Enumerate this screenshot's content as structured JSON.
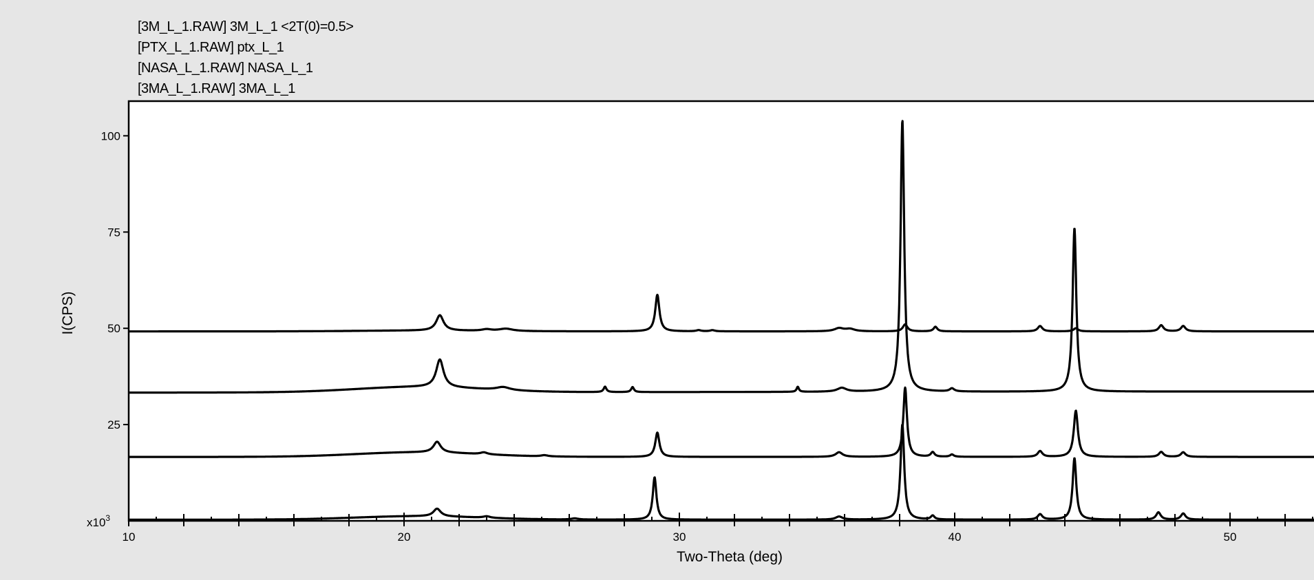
{
  "legend": {
    "items": [
      "[3M_L_1.RAW] 3M_L_1 <2T(0)=0.5>",
      "[PTX_L_1.RAW] ptx_L_1",
      "[NASA_L_1.RAW] NASA_L_1",
      "[3MA_L_1.RAW] 3MA_L_1"
    ]
  },
  "chart_data": {
    "type": "line",
    "xlabel": "Two-Theta (deg)",
    "ylabel": "I(CPS)",
    "yunit_label": "x10",
    "yunit_exp": "3",
    "xlim": [
      10,
      53
    ],
    "ylim": [
      0,
      109
    ],
    "xticks": [
      10,
      20,
      30,
      40,
      50
    ],
    "yticks": [
      25,
      50,
      75,
      100
    ],
    "grid": false,
    "series": [
      {
        "baseline": 49.2,
        "baseline_end": 49.2,
        "rise": 0.2,
        "peaks": [
          [
            21.3,
            4.0,
            0.16
          ],
          [
            23.0,
            0.4,
            0.2
          ],
          [
            23.7,
            0.6,
            0.3
          ],
          [
            29.2,
            9.5,
            0.09
          ],
          [
            30.7,
            0.3,
            0.1
          ],
          [
            31.2,
            0.3,
            0.1
          ],
          [
            35.8,
            0.8,
            0.2
          ],
          [
            36.2,
            0.6,
            0.2
          ],
          [
            38.2,
            1.8,
            0.1
          ],
          [
            39.3,
            1.2,
            0.08
          ],
          [
            43.1,
            1.4,
            0.1
          ],
          [
            44.4,
            0.8,
            0.1
          ],
          [
            47.5,
            1.6,
            0.1
          ],
          [
            48.3,
            1.4,
            0.1
          ]
        ]
      },
      {
        "baseline": 33.3,
        "baseline_end": 33.6,
        "rise": 1.4,
        "peaks": [
          [
            21.3,
            7.2,
            0.16
          ],
          [
            23.6,
            0.8,
            0.3
          ],
          [
            27.3,
            1.4,
            0.06
          ],
          [
            28.3,
            1.3,
            0.06
          ],
          [
            34.3,
            1.3,
            0.05
          ],
          [
            35.9,
            1.0,
            0.2
          ],
          [
            38.1,
            70.5,
            0.08
          ],
          [
            39.9,
            0.8,
            0.1
          ],
          [
            44.35,
            42.5,
            0.08
          ]
        ]
      },
      {
        "baseline": 16.6,
        "baseline_end": 16.6,
        "rise": 1.2,
        "peaks": [
          [
            21.2,
            2.8,
            0.16
          ],
          [
            22.9,
            0.5,
            0.15
          ],
          [
            25.1,
            0.3,
            0.15
          ],
          [
            29.2,
            6.3,
            0.09
          ],
          [
            35.8,
            1.2,
            0.15
          ],
          [
            38.2,
            18.0,
            0.08
          ],
          [
            39.2,
            1.2,
            0.08
          ],
          [
            39.9,
            0.6,
            0.08
          ],
          [
            43.1,
            1.5,
            0.1
          ],
          [
            44.4,
            12.0,
            0.09
          ],
          [
            47.5,
            1.3,
            0.1
          ],
          [
            48.3,
            1.2,
            0.1
          ]
        ]
      },
      {
        "baseline": 0.3,
        "baseline_end": 0.3,
        "rise": 0.9,
        "peaks": [
          [
            21.2,
            2.0,
            0.16
          ],
          [
            23.0,
            0.4,
            0.15
          ],
          [
            26.2,
            0.3,
            0.15
          ],
          [
            29.1,
            11.0,
            0.08
          ],
          [
            35.8,
            0.8,
            0.15
          ],
          [
            38.1,
            24.8,
            0.08
          ],
          [
            39.2,
            1.0,
            0.08
          ],
          [
            43.1,
            1.4,
            0.1
          ],
          [
            44.35,
            16.0,
            0.08
          ],
          [
            47.4,
            1.9,
            0.1
          ],
          [
            48.3,
            1.6,
            0.1
          ]
        ]
      }
    ]
  }
}
